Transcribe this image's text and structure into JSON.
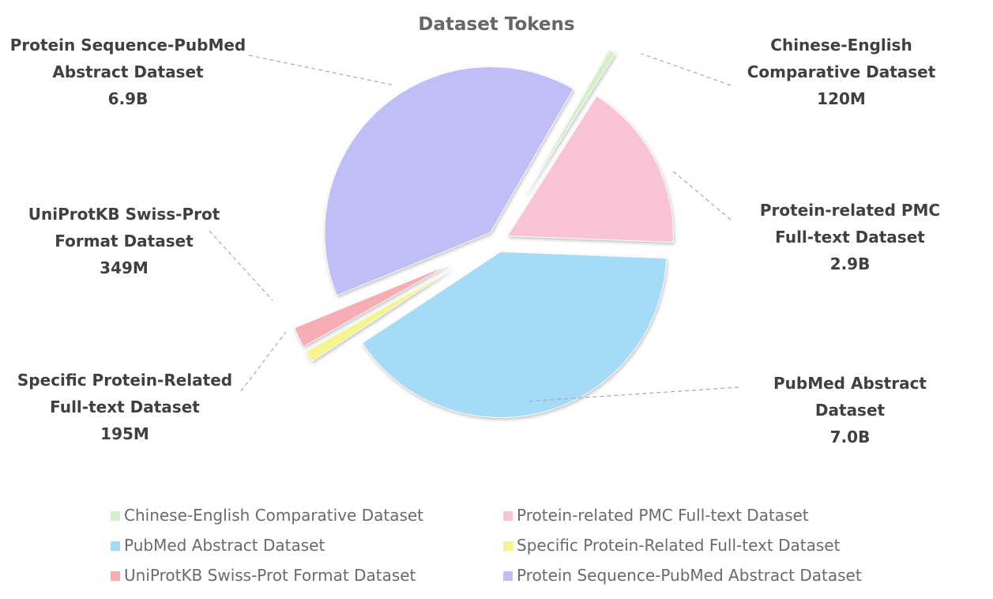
{
  "chart_data": {
    "type": "pie",
    "title": "Dataset Tokens",
    "categories": [
      "Chinese-English Comparative Dataset",
      "Protein-related PMC Full-text Dataset",
      "PubMed Abstract Dataset",
      "Specific Protein-Related Full-text Dataset",
      "UniProtKB Swiss-Prot Format Dataset",
      "Protein Sequence-PubMed Abstract Dataset"
    ],
    "values": [
      120000000,
      2900000000,
      7000000000,
      195000000,
      349000000,
      6900000000
    ],
    "value_labels": [
      "120M",
      "2.9B",
      "7.0B",
      "195M",
      "349M",
      "6.9B"
    ],
    "colors": [
      "#d5efcb",
      "#f8c4d4",
      "#a6dbf8",
      "#f5f48e",
      "#f6adb3",
      "#bfbff6"
    ]
  }
}
